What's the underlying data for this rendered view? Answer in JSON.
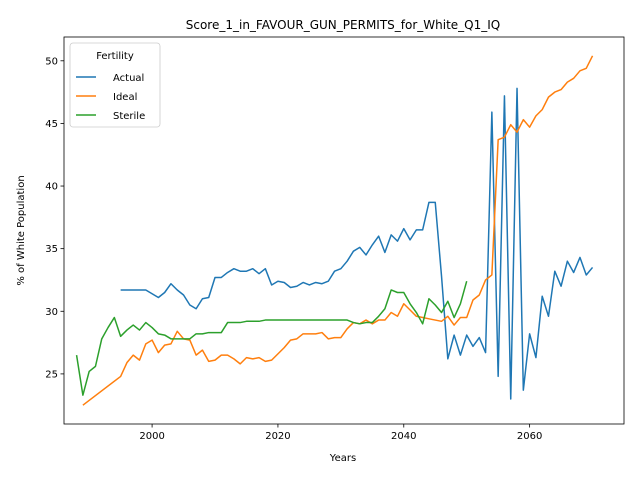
{
  "chart_data": {
    "type": "line",
    "title": "Score_1_in_FAVOUR_GUN_PERMITS_for_White_Q1_IQ",
    "xlabel": "Years",
    "ylabel": "% of White Population",
    "xlim": [
      1986,
      2075
    ],
    "ylim": [
      21,
      51.9
    ],
    "xticks": [
      2000,
      2020,
      2040,
      2060
    ],
    "yticks": [
      25,
      30,
      35,
      40,
      45,
      50
    ],
    "grid": false,
    "legend": {
      "title": "Fertility",
      "position": "top-left"
    },
    "series": [
      {
        "name": "Actual",
        "color": "#1f77b4",
        "x": [
          1995,
          1996,
          1997,
          1998,
          1999,
          2000,
          2001,
          2002,
          2003,
          2004,
          2005,
          2006,
          2007,
          2008,
          2009,
          2010,
          2011,
          2012,
          2013,
          2014,
          2015,
          2016,
          2017,
          2018,
          2019,
          2020,
          2021,
          2022,
          2023,
          2024,
          2025,
          2026,
          2027,
          2028,
          2029,
          2030,
          2031,
          2032,
          2033,
          2034,
          2035,
          2036,
          2037,
          2038,
          2039,
          2040,
          2041,
          2042,
          2043,
          2044,
          2045,
          2046,
          2047,
          2048,
          2049,
          2050,
          2051,
          2052,
          2053,
          2054,
          2055,
          2056,
          2057,
          2058,
          2059,
          2060,
          2061,
          2062,
          2063,
          2064,
          2065,
          2066,
          2067,
          2068,
          2069,
          2070
        ],
        "y": [
          31.7,
          31.7,
          31.7,
          31.7,
          31.7,
          31.4,
          31.1,
          31.5,
          32.2,
          31.7,
          31.3,
          30.5,
          30.2,
          31.0,
          31.1,
          32.7,
          32.7,
          33.1,
          33.4,
          33.2,
          33.2,
          33.4,
          33.0,
          33.4,
          32.1,
          32.4,
          32.3,
          31.9,
          32.0,
          32.3,
          32.1,
          32.3,
          32.2,
          32.4,
          33.2,
          33.4,
          34.0,
          34.8,
          35.1,
          34.5,
          35.3,
          36.0,
          34.7,
          36.1,
          35.6,
          36.6,
          35.7,
          36.5,
          36.5,
          38.7,
          38.7,
          32.8,
          26.2,
          28.1,
          26.5,
          28.1,
          27.2,
          27.9,
          26.7,
          45.9,
          24.8,
          47.2,
          23.0,
          47.8,
          23.7,
          28.2,
          26.3,
          31.2,
          29.6,
          33.2,
          32.0,
          34.0,
          33.1,
          34.3,
          32.9,
          33.5
        ]
      },
      {
        "name": "Ideal",
        "color": "#ff7f0e",
        "x": [
          1989,
          1995,
          1996,
          1997,
          1998,
          1999,
          2000,
          2001,
          2002,
          2003,
          2004,
          2005,
          2006,
          2007,
          2008,
          2009,
          2010,
          2011,
          2012,
          2013,
          2014,
          2015,
          2016,
          2017,
          2018,
          2019,
          2020,
          2021,
          2022,
          2023,
          2024,
          2025,
          2026,
          2027,
          2028,
          2029,
          2030,
          2031,
          2032,
          2033,
          2034,
          2035,
          2036,
          2037,
          2038,
          2039,
          2040,
          2041,
          2042,
          2043,
          2044,
          2045,
          2046,
          2047,
          2048,
          2049,
          2050,
          2051,
          2052,
          2053,
          2054,
          2055,
          2056,
          2057,
          2058,
          2059,
          2060,
          2061,
          2062,
          2063,
          2064,
          2065,
          2066,
          2067,
          2068,
          2069,
          2070
        ],
        "y": [
          22.5,
          24.8,
          25.9,
          26.5,
          26.1,
          27.4,
          27.7,
          26.7,
          27.3,
          27.4,
          28.4,
          27.8,
          27.7,
          26.5,
          26.9,
          26.0,
          26.1,
          26.5,
          26.5,
          26.2,
          25.8,
          26.3,
          26.2,
          26.3,
          26.0,
          26.1,
          26.6,
          27.1,
          27.7,
          27.8,
          28.2,
          28.2,
          28.2,
          28.3,
          27.8,
          27.9,
          27.9,
          28.6,
          29.1,
          29.0,
          29.3,
          29.0,
          29.3,
          29.3,
          29.9,
          29.6,
          30.6,
          30.1,
          29.6,
          29.5,
          29.4,
          29.3,
          29.2,
          29.6,
          28.9,
          29.5,
          29.5,
          30.9,
          31.3,
          32.5,
          32.9,
          43.7,
          43.9,
          44.9,
          44.3,
          45.3,
          44.7,
          45.6,
          46.1,
          47.1,
          47.5,
          47.7,
          48.3,
          48.6,
          49.2,
          49.4,
          50.4
        ]
      },
      {
        "name": "Sterile",
        "color": "#2ca02c",
        "x": [
          1988,
          1989,
          1990,
          1991,
          1992,
          1993,
          1994,
          1995,
          1996,
          1997,
          1998,
          1999,
          2000,
          2001,
          2002,
          2003,
          2004,
          2005,
          2006,
          2007,
          2008,
          2009,
          2010,
          2011,
          2012,
          2013,
          2014,
          2015,
          2016,
          2017,
          2018,
          2019,
          2020,
          2021,
          2022,
          2023,
          2024,
          2025,
          2026,
          2027,
          2028,
          2029,
          2030,
          2031,
          2032,
          2033,
          2034,
          2035,
          2036,
          2037,
          2038,
          2039,
          2040,
          2041,
          2042,
          2043,
          2044,
          2045,
          2046,
          2047,
          2048,
          2049,
          2050
        ],
        "y": [
          26.5,
          23.3,
          25.2,
          25.6,
          27.8,
          28.7,
          29.5,
          28.0,
          28.5,
          28.9,
          28.5,
          29.1,
          28.7,
          28.2,
          28.1,
          27.8,
          27.8,
          27.8,
          27.8,
          28.2,
          28.2,
          28.3,
          28.3,
          28.3,
          29.1,
          29.1,
          29.1,
          29.2,
          29.2,
          29.2,
          29.3,
          29.3,
          29.3,
          29.3,
          29.3,
          29.3,
          29.3,
          29.3,
          29.3,
          29.3,
          29.3,
          29.3,
          29.3,
          29.3,
          29.1,
          29.0,
          29.1,
          29.1,
          29.6,
          30.2,
          31.7,
          31.5,
          31.5,
          30.6,
          29.9,
          29.0,
          31.0,
          30.5,
          29.9,
          30.8,
          29.5,
          30.6,
          32.4
        ]
      }
    ]
  }
}
